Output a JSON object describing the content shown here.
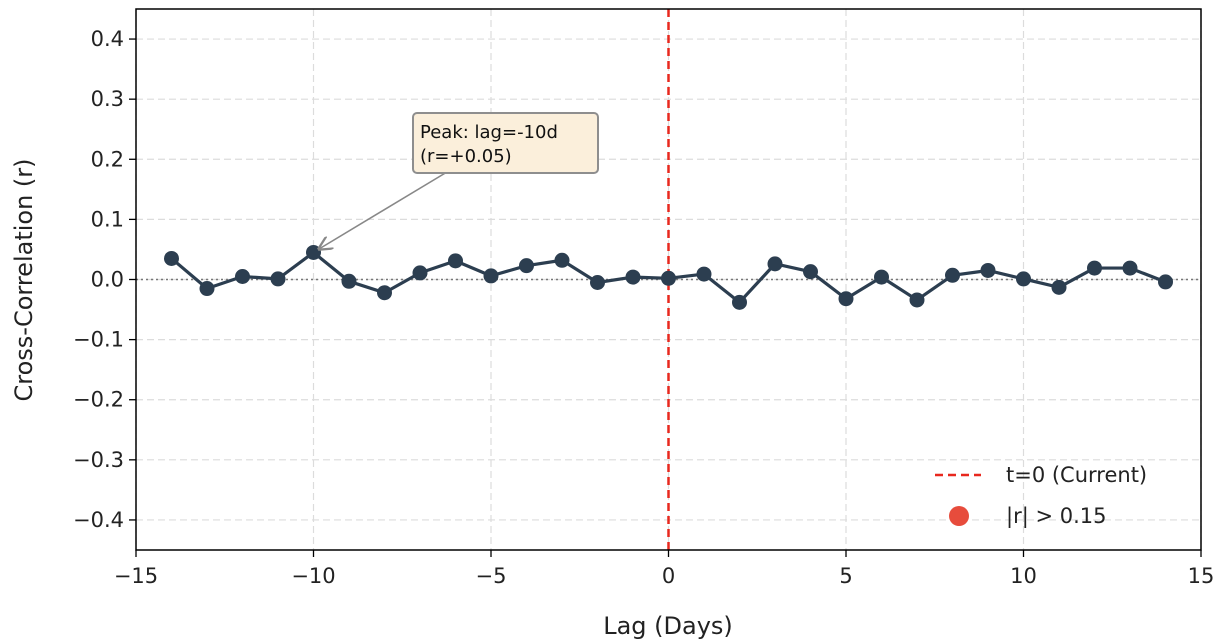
{
  "chart_data": {
    "type": "line",
    "xlabel": "Lag (Days)",
    "ylabel": "Cross-Correlation (r)",
    "xlim": [
      -15,
      15
    ],
    "ylim": [
      -0.45,
      0.45
    ],
    "xticks": [
      -15,
      -10,
      -5,
      0,
      5,
      10,
      15
    ],
    "xtick_labels": [
      "−15",
      "−10",
      "−5",
      "0",
      "5",
      "10",
      "15"
    ],
    "yticks": [
      0.4,
      0.3,
      0.2,
      0.1,
      0.0,
      -0.1,
      -0.2,
      -0.3,
      -0.4
    ],
    "ytick_labels": [
      "0.4",
      "0.3",
      "0.2",
      "0.1",
      "0.0",
      "−0.1",
      "−0.2",
      "−0.3",
      "−0.4"
    ],
    "grid": true,
    "series": [
      {
        "color": "#2c3e50",
        "x": [
          -14,
          -13,
          -12,
          -11,
          -10,
          -9,
          -8,
          -7,
          -6,
          -5,
          -4,
          -3,
          -2,
          -1,
          0,
          1,
          2,
          3,
          4,
          5,
          6,
          7,
          8,
          9,
          10,
          11,
          12,
          13,
          14
        ],
        "values": [
          0.035,
          -0.015,
          0.005,
          0.001,
          0.045,
          -0.003,
          -0.022,
          0.011,
          0.031,
          0.006,
          0.023,
          0.032,
          -0.005,
          0.004,
          0.002,
          0.009,
          -0.038,
          0.026,
          0.013,
          -0.032,
          0.004,
          -0.034,
          0.007,
          0.015,
          0.001,
          -0.013,
          0.019,
          0.019,
          -0.004
        ]
      }
    ],
    "reference_lines": {
      "vertical_x": 0,
      "vertical_color": "#e8281e",
      "horizontal_y": 0
    },
    "annotation": {
      "lines": [
        "Peak: lag=-10d",
        "(r=+0.05)"
      ],
      "x": -10,
      "y": 0.045
    },
    "legend": {
      "placement": "lower-right",
      "entries": [
        {
          "label": "t=0 (Current)",
          "marker": "dashed-line",
          "color": "#e8281e"
        },
        {
          "label": "|r| > 0.15",
          "marker": "circle",
          "color": "#e74c3c"
        }
      ]
    }
  }
}
